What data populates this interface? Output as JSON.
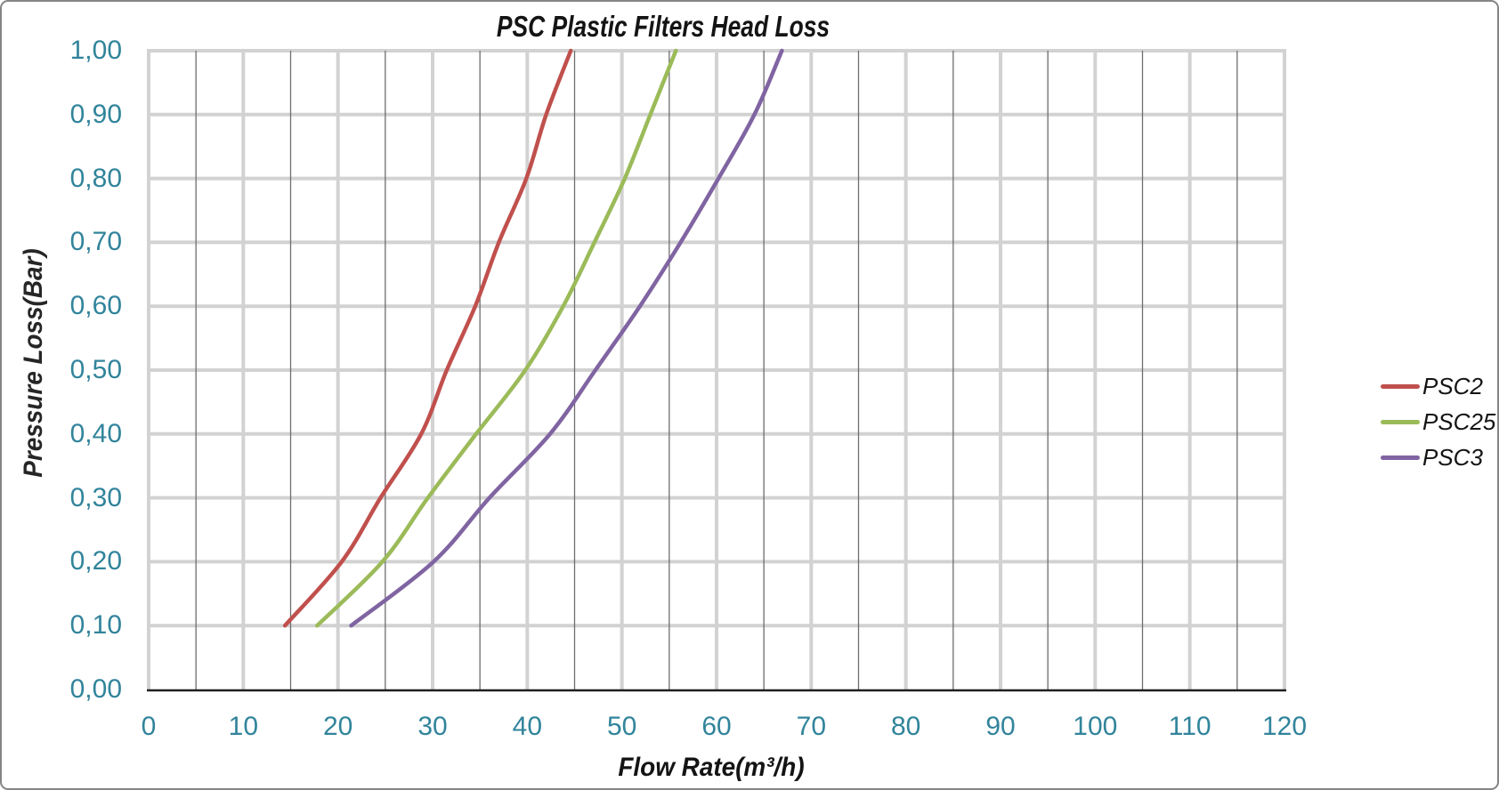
{
  "title": "PSC Plastic Filters Head Loss",
  "axes": {
    "x": {
      "title": "Flow Rate(m³/h)",
      "min": 0,
      "max": 120,
      "major_step": 10,
      "minor_step": 5,
      "tick_labels": [
        "0",
        "10",
        "20",
        "30",
        "40",
        "50",
        "60",
        "70",
        "80",
        "90",
        "100",
        "110",
        "120"
      ]
    },
    "y": {
      "title": "Pressure Loss(Bar)",
      "min": 0,
      "max": 1,
      "major_step": 0.1,
      "tick_labels": [
        "0,00",
        "0,10",
        "0,20",
        "0,30",
        "0,40",
        "0,50",
        "0,60",
        "0,70",
        "0,80",
        "0,90",
        "1,00"
      ]
    }
  },
  "colors": {
    "tick_label": "#31849B",
    "grid_major": "#D2D2D2",
    "grid_minor": "#6E6E6E",
    "axis_line": "#1F1F1F",
    "title_text": "#141414"
  },
  "chart_data": {
    "type": "line",
    "title": "PSC Plastic Filters Head Loss",
    "xlabel": "Flow Rate(m³/h)",
    "ylabel": "Pressure Loss(Bar)",
    "xlim": [
      0,
      120
    ],
    "ylim": [
      0,
      1
    ],
    "grid": "major x+y, minor x every 5",
    "legend_position": "right-outside",
    "pressure_levels": [
      0.1,
      0.2,
      0.3,
      0.4,
      0.5,
      0.6,
      0.7,
      0.8,
      0.9,
      1.0
    ],
    "series": [
      {
        "name": "PSC2",
        "color": "#C0504D",
        "flow_values": [
          14.4,
          20.4,
          24.5,
          28.8,
          31.5,
          34.5,
          37.0,
          39.9,
          42.0,
          44.6
        ]
      },
      {
        "name": "PSC25",
        "color": "#9BBB59",
        "flow_values": [
          17.8,
          24.7,
          29.5,
          34.6,
          39.8,
          43.8,
          47.1,
          50.3,
          53.0,
          55.7
        ]
      },
      {
        "name": "PSC3",
        "color": "#8064A2",
        "flow_values": [
          21.4,
          30.1,
          36.0,
          42.4,
          47.2,
          51.9,
          56.2,
          60.2,
          64.0,
          66.9
        ]
      }
    ]
  }
}
